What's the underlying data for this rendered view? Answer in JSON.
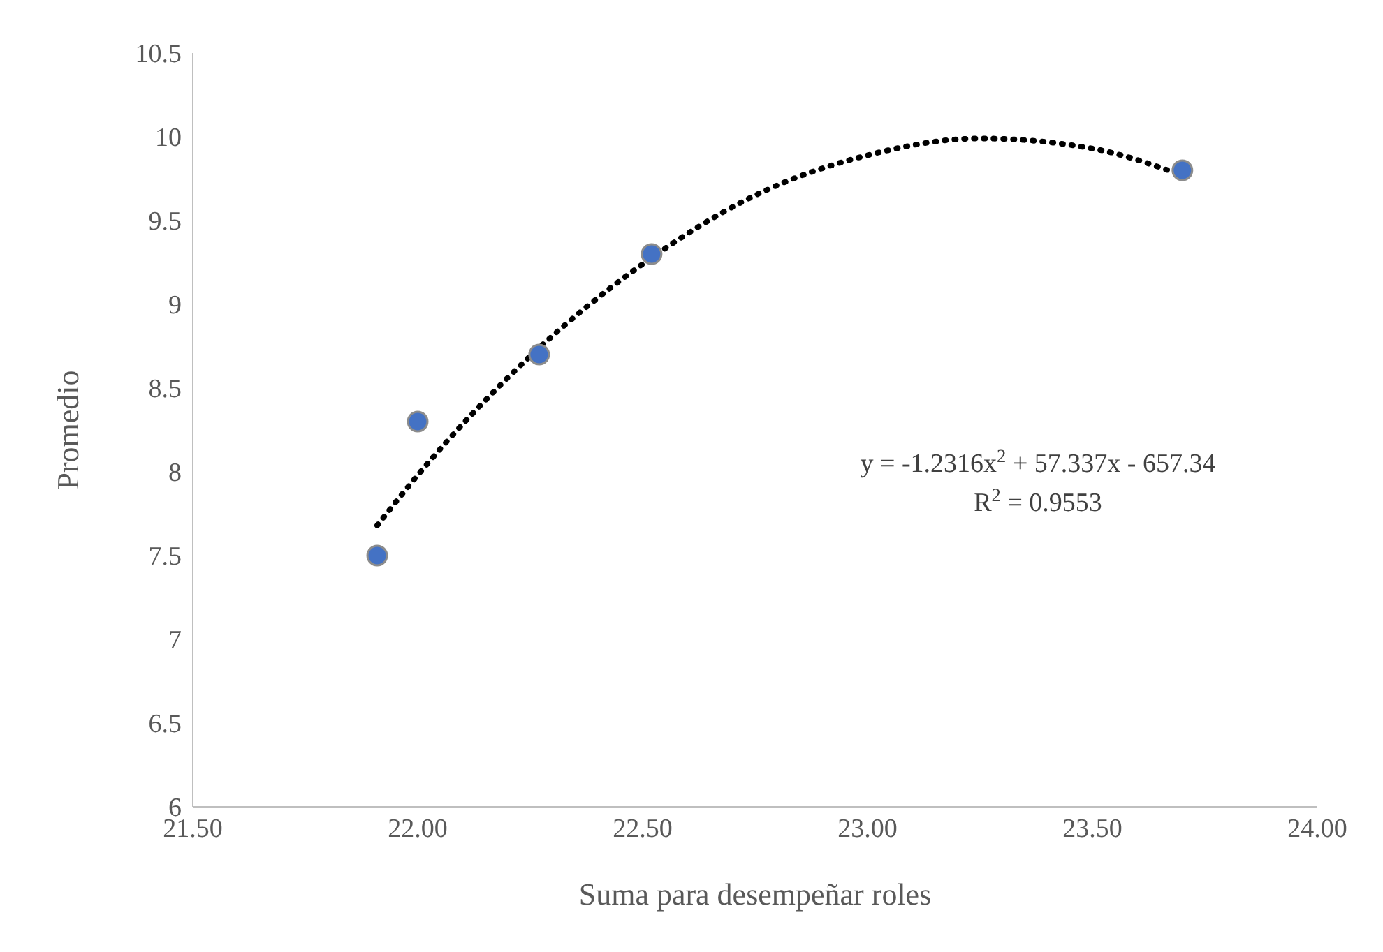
{
  "chart_data": {
    "type": "scatter",
    "xlabel": "Suma para desempeñar roles",
    "ylabel": "Promedio",
    "series": [
      {
        "color": "#4472c4",
        "x": [
          21.91,
          22.0,
          22.27,
          22.52,
          23.7
        ],
        "values": [
          7.5,
          8.3,
          8.7,
          9.3,
          9.8
        ]
      },
      {
        "type": "line",
        "color": "#000000",
        "line_style": "dotted",
        "marker": "none",
        "x": [
          21.91,
          22.0,
          22.25,
          22.5,
          22.75,
          23.0,
          23.25,
          23.5,
          23.7
        ],
        "values": [
          7.68,
          7.98,
          8.69,
          9.24,
          9.65,
          9.89,
          9.99,
          9.93,
          9.77
        ]
      }
    ],
    "xlim": [
      21.5,
      24.0
    ],
    "xticks": [
      {
        "value": 21.5,
        "label": "21.50"
      },
      {
        "value": 22.0,
        "label": "22.00"
      },
      {
        "value": 22.5,
        "label": "22.50"
      },
      {
        "value": 23.0,
        "label": "23.00"
      },
      {
        "value": 23.5,
        "label": "23.50"
      },
      {
        "value": 24.0,
        "label": "24.00"
      }
    ],
    "ylim": [
      6,
      10.5
    ],
    "yticks": [
      6,
      6.5,
      7,
      7.5,
      8,
      8.5,
      9,
      9.5,
      10,
      10.5
    ],
    "grid": false,
    "annotations": [
      "y = -1.2316x$^{2}$ + 57.337x - 657.34",
      "R$^{2}$ = 0.9553"
    ]
  }
}
